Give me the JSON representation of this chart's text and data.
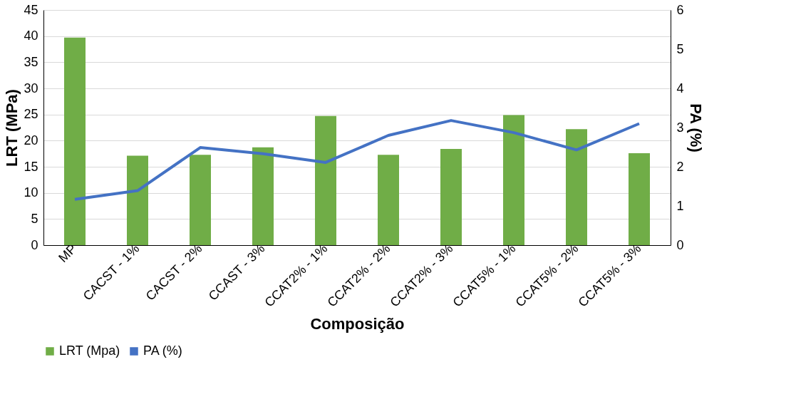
{
  "chart_data": {
    "type": "bar",
    "xlabel": "Composição",
    "ylabel": "LRT (MPa)",
    "y2label": "PA (%)",
    "categories": [
      "MP",
      "CACST - 1%",
      "CACST - 2%",
      "CCAST - 3%",
      "CCAT2% - 1%",
      "CCAT2% - 2%",
      "CCAT2% - 3%",
      "CCAT5% - 1%",
      "CCAT5% - 2%",
      "CCAT5% - 3%"
    ],
    "series": [
      {
        "name": "LRT (Mpa)",
        "color": "#70ad47",
        "values": [
          39.7,
          17.1,
          17.3,
          18.7,
          24.7,
          17.3,
          18.4,
          24.9,
          22.2,
          17.6
        ]
      },
      {
        "name": "PA (%)",
        "type": "line",
        "axis": "y2",
        "color": "#4472c4",
        "values": [
          1.17,
          1.39,
          2.49,
          2.33,
          2.11,
          2.8,
          3.18,
          2.87,
          2.43,
          3.1
        ]
      }
    ],
    "ylim": [
      0,
      45
    ],
    "yticks": [
      0,
      5,
      10,
      15,
      20,
      25,
      30,
      35,
      40,
      45
    ],
    "y2lim": [
      0,
      6
    ],
    "y2ticks": [
      0,
      1,
      2,
      3,
      4,
      5,
      6
    ],
    "grid": "y",
    "legend": "bottom",
    "marker": "none",
    "line_style": "solid"
  }
}
